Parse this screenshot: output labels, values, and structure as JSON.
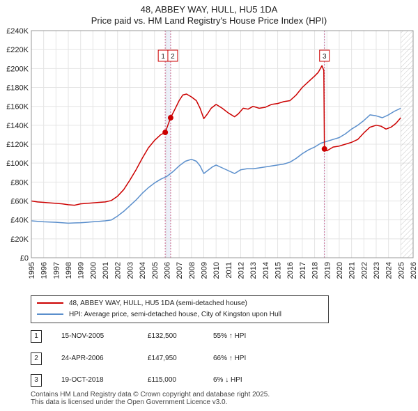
{
  "title_line1": "48, ABBEY WAY, HULL, HU5 1DA",
  "title_line2": "Price paid vs. HM Land Registry's House Price Index (HPI)",
  "colors": {
    "property": "#cc0000",
    "hpi": "#5b8fcc",
    "highlight": "#dde6f5",
    "future_hatch": "#999999"
  },
  "legend": {
    "property_label": "48, ABBEY WAY, HULL, HU5 1DA (semi-detached house)",
    "hpi_label": "HPI: Average price, semi-detached house, City of Kingston upon Hull"
  },
  "sales": [
    {
      "num": "1",
      "date": "15-NOV-2005",
      "price": "£132,500",
      "hpi": "55% ↑ HPI"
    },
    {
      "num": "2",
      "date": "24-APR-2006",
      "price": "£147,950",
      "hpi": "66% ↑ HPI"
    },
    {
      "num": "3",
      "date": "19-OCT-2018",
      "price": "£115,000",
      "hpi": "6% ↓ HPI"
    }
  ],
  "footer_line1": "Contains HM Land Registry data © Crown copyright and database right 2025.",
  "footer_line2": "This data is licensed under the Open Government Licence v3.0.",
  "chart_data": {
    "type": "line",
    "xlim": [
      1995,
      2026
    ],
    "ylim": [
      0,
      240000
    ],
    "x_ticks": [
      1995,
      1996,
      1997,
      1998,
      1999,
      2000,
      2001,
      2002,
      2003,
      2004,
      2005,
      2006,
      2007,
      2008,
      2009,
      2010,
      2011,
      2012,
      2013,
      2014,
      2015,
      2016,
      2017,
      2018,
      2019,
      2020,
      2021,
      2022,
      2023,
      2024,
      2025,
      2026
    ],
    "y_ticks": [
      0,
      20000,
      40000,
      60000,
      80000,
      100000,
      120000,
      140000,
      160000,
      180000,
      200000,
      220000,
      240000
    ],
    "y_tick_labels": [
      "£0",
      "£20K",
      "£40K",
      "£60K",
      "£80K",
      "£100K",
      "£120K",
      "£140K",
      "£160K",
      "£180K",
      "£200K",
      "£220K",
      "£240K"
    ],
    "grid": true,
    "future_start": 2025.0,
    "sale_markers": [
      {
        "label": "1",
        "x": 2005.87,
        "y": 132500
      },
      {
        "label": "2",
        "x": 2006.31,
        "y": 147950
      },
      {
        "label": "3",
        "x": 2018.8,
        "y": 115000
      }
    ],
    "series": [
      {
        "name": "48, ABBEY WAY, HULL, HU5 1DA (semi-detached house)",
        "color": "#cc0000",
        "points": [
          [
            1995.0,
            60000
          ],
          [
            1995.5,
            59000
          ],
          [
            1996.0,
            58500
          ],
          [
            1996.5,
            58000
          ],
          [
            1997.0,
            57500
          ],
          [
            1997.5,
            57000
          ],
          [
            1998.0,
            56000
          ],
          [
            1998.5,
            55500
          ],
          [
            1999.0,
            57000
          ],
          [
            1999.5,
            57500
          ],
          [
            2000.0,
            58000
          ],
          [
            2000.5,
            58500
          ],
          [
            2001.0,
            59000
          ],
          [
            2001.5,
            60500
          ],
          [
            2002.0,
            65000
          ],
          [
            2002.5,
            72000
          ],
          [
            2003.0,
            82000
          ],
          [
            2003.5,
            93000
          ],
          [
            2004.0,
            105000
          ],
          [
            2004.5,
            116000
          ],
          [
            2005.0,
            124000
          ],
          [
            2005.5,
            130000
          ],
          [
            2005.87,
            132500
          ],
          [
            2006.31,
            147950
          ],
          [
            2006.7,
            158000
          ],
          [
            2007.0,
            166000
          ],
          [
            2007.3,
            172000
          ],
          [
            2007.6,
            173000
          ],
          [
            2008.0,
            170000
          ],
          [
            2008.4,
            166000
          ],
          [
            2008.7,
            158000
          ],
          [
            2009.0,
            147000
          ],
          [
            2009.3,
            152000
          ],
          [
            2009.6,
            158000
          ],
          [
            2010.0,
            162000
          ],
          [
            2010.5,
            158000
          ],
          [
            2011.0,
            153000
          ],
          [
            2011.5,
            149000
          ],
          [
            2011.8,
            152000
          ],
          [
            2012.2,
            158000
          ],
          [
            2012.6,
            157000
          ],
          [
            2013.0,
            160000
          ],
          [
            2013.5,
            158000
          ],
          [
            2014.0,
            159000
          ],
          [
            2014.5,
            162000
          ],
          [
            2015.0,
            163000
          ],
          [
            2015.5,
            165000
          ],
          [
            2016.0,
            166000
          ],
          [
            2016.5,
            172000
          ],
          [
            2017.0,
            180000
          ],
          [
            2017.5,
            186000
          ],
          [
            2018.0,
            192000
          ],
          [
            2018.3,
            196000
          ],
          [
            2018.6,
            203000
          ],
          [
            2018.75,
            198000
          ],
          [
            2018.8,
            115000
          ],
          [
            2019.0,
            113000
          ],
          [
            2019.5,
            117000
          ],
          [
            2020.0,
            118000
          ],
          [
            2020.5,
            120000
          ],
          [
            2021.0,
            122000
          ],
          [
            2021.5,
            125000
          ],
          [
            2022.0,
            132000
          ],
          [
            2022.5,
            138000
          ],
          [
            2023.0,
            140000
          ],
          [
            2023.4,
            139000
          ],
          [
            2023.8,
            136000
          ],
          [
            2024.2,
            138000
          ],
          [
            2024.6,
            142000
          ],
          [
            2025.0,
            148000
          ]
        ]
      },
      {
        "name": "HPI: Average price, semi-detached house, City of Kingston upon Hull",
        "color": "#5b8fcc",
        "points": [
          [
            1995.0,
            39000
          ],
          [
            1995.5,
            38500
          ],
          [
            1996.0,
            38000
          ],
          [
            1996.5,
            37800
          ],
          [
            1997.0,
            37500
          ],
          [
            1997.5,
            37000
          ],
          [
            1998.0,
            36500
          ],
          [
            1998.5,
            36800
          ],
          [
            1999.0,
            37000
          ],
          [
            1999.5,
            37500
          ],
          [
            2000.0,
            38000
          ],
          [
            2000.5,
            38500
          ],
          [
            2001.0,
            39000
          ],
          [
            2001.5,
            40000
          ],
          [
            2002.0,
            44000
          ],
          [
            2002.5,
            49000
          ],
          [
            2003.0,
            55000
          ],
          [
            2003.5,
            61000
          ],
          [
            2004.0,
            68000
          ],
          [
            2004.5,
            74000
          ],
          [
            2005.0,
            79000
          ],
          [
            2005.5,
            83000
          ],
          [
            2006.0,
            86000
          ],
          [
            2006.5,
            91000
          ],
          [
            2007.0,
            97000
          ],
          [
            2007.5,
            102000
          ],
          [
            2008.0,
            104000
          ],
          [
            2008.4,
            102000
          ],
          [
            2008.7,
            97000
          ],
          [
            2009.0,
            89000
          ],
          [
            2009.3,
            92000
          ],
          [
            2009.7,
            96000
          ],
          [
            2010.0,
            98000
          ],
          [
            2010.5,
            95000
          ],
          [
            2011.0,
            92000
          ],
          [
            2011.5,
            89000
          ],
          [
            2012.0,
            93000
          ],
          [
            2012.5,
            94000
          ],
          [
            2013.0,
            94000
          ],
          [
            2013.5,
            95000
          ],
          [
            2014.0,
            96000
          ],
          [
            2014.5,
            97000
          ],
          [
            2015.0,
            98000
          ],
          [
            2015.5,
            99000
          ],
          [
            2016.0,
            101000
          ],
          [
            2016.5,
            105000
          ],
          [
            2017.0,
            110000
          ],
          [
            2017.5,
            114000
          ],
          [
            2018.0,
            117000
          ],
          [
            2018.5,
            121000
          ],
          [
            2019.0,
            123000
          ],
          [
            2019.5,
            125000
          ],
          [
            2020.0,
            127000
          ],
          [
            2020.5,
            131000
          ],
          [
            2021.0,
            136000
          ],
          [
            2021.5,
            140000
          ],
          [
            2022.0,
            145000
          ],
          [
            2022.5,
            151000
          ],
          [
            2023.0,
            150000
          ],
          [
            2023.5,
            148000
          ],
          [
            2024.0,
            151000
          ],
          [
            2024.5,
            155000
          ],
          [
            2025.0,
            158000
          ]
        ]
      }
    ]
  }
}
